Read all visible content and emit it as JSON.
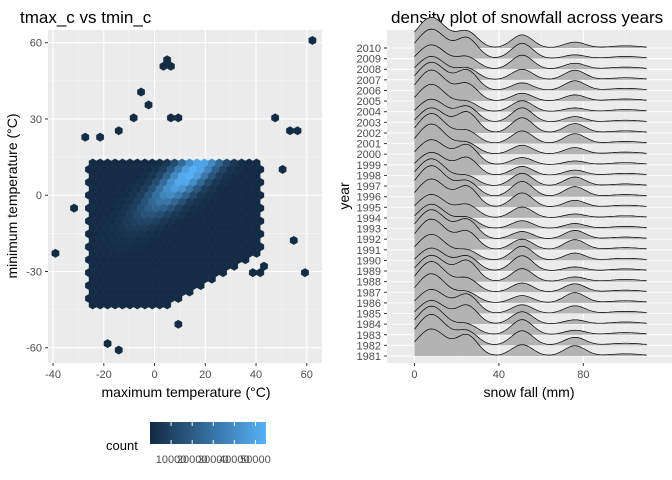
{
  "colors": {
    "panel_bg": "#ebebeb",
    "grid_major": "#ffffff",
    "ridge_fill": "#b3b3b3",
    "ridge_line": "#000000",
    "hex_low": "#132b43",
    "hex_high": "#56b1f7"
  },
  "chart_data": [
    {
      "type": "heatmap",
      "geom": "hexbin",
      "title": "tmax_c vs tmin_c",
      "xlabel": "maximum temperature (°C)",
      "ylabel": "minimum temperature (°C)",
      "xlim": [
        -42,
        66
      ],
      "ylim": [
        -66,
        65
      ],
      "xticks": [
        -40,
        -20,
        0,
        20,
        40,
        60
      ],
      "yticks": [
        -60,
        -30,
        0,
        30,
        60
      ],
      "legend": {
        "title": "count",
        "position": "bottom",
        "breaks": [
          10000,
          20000,
          30000,
          40000,
          50000
        ],
        "labels": [
          "10000",
          "20000",
          "30000",
          "40000",
          "50000"
        ],
        "range": [
          1,
          55000
        ]
      },
      "grid": true
    },
    {
      "type": "area",
      "geom": "density_ridges",
      "title": "density plot of snowfall across years",
      "xlabel": "snow fall (mm)",
      "ylabel": "year",
      "xlim": [
        -13,
        122
      ],
      "xticks": [
        0,
        40,
        80
      ],
      "years": [
        "1981",
        "1982",
        "1983",
        "1984",
        "1985",
        "1986",
        "1987",
        "1988",
        "1989",
        "1990",
        "1991",
        "1992",
        "1993",
        "1994",
        "1995",
        "1996",
        "1997",
        "1998",
        "1999",
        "2000",
        "2001",
        "2002",
        "2003",
        "2004",
        "2005",
        "2006",
        "2007",
        "2008",
        "2009",
        "2010"
      ],
      "density_peaks_mm": [
        8,
        25,
        51,
        76
      ],
      "grid": true
    }
  ]
}
